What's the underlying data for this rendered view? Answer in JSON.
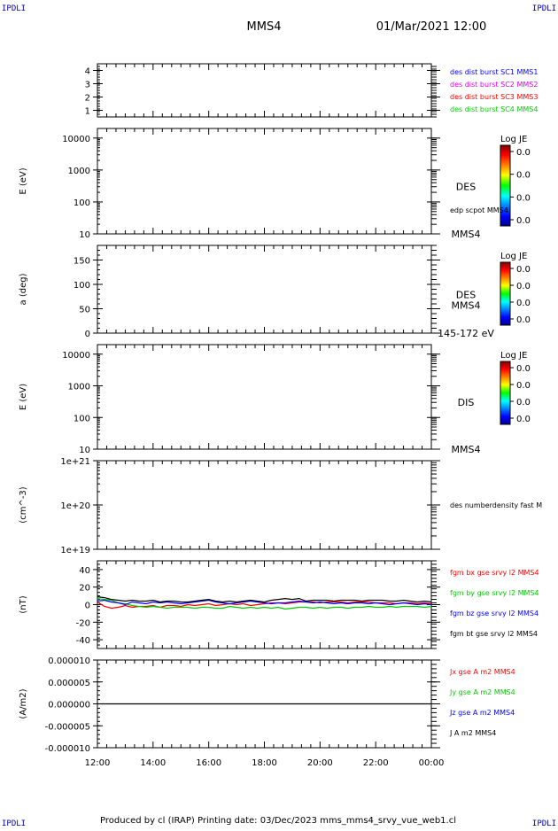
{
  "header": {
    "corner_tl": "IPDLI",
    "corner_tr": "IPDLI",
    "corner_bl": "IPDLI",
    "corner_br": "IPDLI",
    "spacecraft": "MMS4",
    "datetime": "01/Mar/2021 12:00"
  },
  "footer": {
    "text": "Produced by cl (IRAP)   Printing date: 03/Dec/2023   mms_mms4_srvy_vue_web1.cl"
  },
  "colors": {
    "blue": "#0000ff",
    "magenta": "#dd00dd",
    "red": "#ff0000",
    "green": "#00cc00",
    "black": "#000000"
  },
  "colorbar": {
    "title": "Log JE",
    "tick_labels": [
      "0.0",
      "0.0",
      "0.0",
      "0.0"
    ]
  },
  "chart_data": [
    {
      "type": "line",
      "id": "burst",
      "ylabel": "",
      "ylim": [
        0.5,
        4.5
      ],
      "yticks": [
        1,
        2,
        3,
        4
      ],
      "ytick_labels": [
        "1",
        "2",
        "3",
        "4"
      ],
      "side_labels": [
        {
          "text": "des dist burst SC1 MMS1",
          "color": "#0000ff"
        },
        {
          "text": "des dist burst SC2 MMS2",
          "color": "#dd00dd"
        },
        {
          "text": "des dist burst SC3 MMS3",
          "color": "#ff0000"
        },
        {
          "text": "des dist burst SC4 MMS4",
          "color": "#00cc00"
        }
      ]
    },
    {
      "type": "heatmap",
      "id": "des-energy",
      "ylabel": "E (eV)",
      "yscale": "log",
      "ylim": [
        10,
        20000
      ],
      "yticks": [
        10,
        100,
        1000,
        10000
      ],
      "ytick_labels": [
        "10",
        "100",
        "1000",
        "10000"
      ],
      "label_main": "DES",
      "label_line": "edp scpot MMS4",
      "label_sc": "MMS4"
    },
    {
      "type": "heatmap",
      "id": "des-pitch",
      "ylabel": "a (deg)",
      "ylim": [
        0,
        180
      ],
      "yticks": [
        0,
        50,
        100,
        150
      ],
      "ytick_labels": [
        "0",
        "50",
        "100",
        "150"
      ],
      "label_main": "DES",
      "label_sc": "MMS4",
      "label_range": "145-172 eV"
    },
    {
      "type": "heatmap",
      "id": "dis-energy",
      "ylabel": "E (eV)",
      "yscale": "log",
      "ylim": [
        10,
        20000
      ],
      "yticks": [
        10,
        100,
        1000,
        10000
      ],
      "ytick_labels": [
        "10",
        "100",
        "1000",
        "10000"
      ],
      "label_main": "DIS",
      "label_sc": "MMS4"
    },
    {
      "type": "line",
      "id": "density",
      "ylabel": "(cm^-3)",
      "yscale": "log",
      "ylim": [
        1e+19,
        1e+21
      ],
      "yticks": [
        1e+19,
        1e+20,
        1e+21
      ],
      "ytick_labels": [
        "1e+19",
        "1e+20",
        "1e+21"
      ],
      "side_labels": [
        {
          "text": "des numberdensity fast M",
          "color": "#000000"
        }
      ]
    },
    {
      "type": "line",
      "id": "fgm",
      "ylabel": "(nT)",
      "ylim": [
        -50,
        50
      ],
      "yticks": [
        -40,
        -20,
        0,
        20,
        40
      ],
      "ytick_labels": [
        "-40",
        "-20",
        "0",
        "20",
        "40"
      ],
      "side_labels": [
        {
          "text": "fgm bx gse srvy l2 MMS4",
          "color": "#ff0000"
        },
        {
          "text": "fgm by gse srvy l2 MMS4",
          "color": "#00cc00"
        },
        {
          "text": "fgm bz gse srvy l2 MMS4",
          "color": "#0000ff"
        },
        {
          "text": "fgm bt gse srvy l2 MMS4",
          "color": "#000000"
        }
      ],
      "x": [
        0,
        0.25,
        0.5,
        0.75,
        1,
        1.25,
        1.5,
        1.75,
        2,
        2.25,
        2.5,
        2.75,
        3,
        3.25,
        3.5,
        3.75,
        4,
        4.25,
        4.5,
        4.75,
        5,
        5.25,
        5.5,
        5.75,
        6,
        6.25,
        6.5,
        6.75,
        7,
        7.25,
        7.5,
        7.75,
        8,
        8.25,
        8.5,
        8.75,
        9,
        9.25,
        9.5,
        9.75,
        10,
        10.25,
        10.5,
        10.75,
        11,
        11.25,
        11.5,
        11.75,
        12
      ],
      "series": [
        {
          "name": "fgm bx gse srvy l2 MMS4",
          "color": "#ff0000",
          "values": [
            3,
            -2,
            -4,
            -3,
            -1,
            -3,
            -2,
            -2,
            -1,
            -3,
            -1,
            -1,
            -2,
            0,
            -1,
            0,
            1,
            -1,
            0,
            1,
            0,
            1,
            -1,
            0,
            1,
            2,
            2,
            1,
            2,
            3,
            3,
            3,
            2,
            3,
            3,
            3,
            2,
            3,
            3,
            3,
            2,
            2,
            2,
            1,
            2,
            2,
            1,
            2,
            1
          ]
        },
        {
          "name": "fgm by gse srvy l2 MMS4",
          "color": "#00cc00",
          "values": [
            7,
            6,
            5,
            2,
            1,
            -1,
            -2,
            -3,
            -2,
            -3,
            -4,
            -3,
            -3,
            -3,
            -4,
            -3,
            -3,
            -4,
            -4,
            -2,
            -3,
            -4,
            -3,
            -4,
            -3,
            -4,
            -3,
            -5,
            -4,
            -3,
            -3,
            -4,
            -3,
            -4,
            -3,
            -3,
            -4,
            -3,
            -3,
            -2,
            -3,
            -3,
            -2,
            -3,
            -2,
            -2,
            -2,
            -3,
            -2
          ]
        },
        {
          "name": "fgm bz gse srvy l2 MMS4",
          "color": "#0000ff",
          "values": [
            4,
            5,
            3,
            2,
            0,
            3,
            2,
            1,
            3,
            2,
            3,
            2,
            1,
            2,
            3,
            4,
            5,
            3,
            2,
            1,
            2,
            3,
            4,
            3,
            2,
            1,
            2,
            2,
            3,
            4,
            3,
            2,
            3,
            2,
            1,
            2,
            1,
            2,
            2,
            1,
            2,
            1,
            0,
            1,
            2,
            1,
            0,
            1,
            0
          ]
        },
        {
          "name": "fgm bt gse srvy l2 MMS4",
          "color": "#000000",
          "values": [
            9,
            8,
            6,
            5,
            4,
            5,
            4,
            4,
            5,
            3,
            4,
            4,
            3,
            3,
            4,
            5,
            6,
            4,
            3,
            4,
            3,
            4,
            5,
            4,
            3,
            5,
            6,
            7,
            6,
            7,
            4,
            5,
            5,
            5,
            4,
            5,
            5,
            5,
            4,
            5,
            5,
            5,
            4,
            4,
            5,
            4,
            3,
            4,
            3
          ]
        }
      ]
    },
    {
      "type": "line",
      "id": "current",
      "ylabel": "(A/m2)",
      "ylim": [
        -1e-05,
        1e-05
      ],
      "yticks": [
        -1e-05,
        -5e-06,
        0,
        5e-06,
        1e-05
      ],
      "ytick_labels": [
        "-0.000010",
        "-0.000005",
        "0.000000",
        "0.000005",
        "0.000010"
      ],
      "side_labels": [
        {
          "text": "Jx gse A m2 MMS4",
          "color": "#ff0000"
        },
        {
          "text": "Jy gse A m2 MMS4",
          "color": "#00cc00"
        },
        {
          "text": "Jz gse A m2 MMS4",
          "color": "#0000ff"
        },
        {
          "text": "J A m2 MMS4",
          "color": "#000000"
        }
      ],
      "x": [
        0,
        12
      ],
      "series": [
        {
          "name": "J A m2 MMS4",
          "color": "#000000",
          "values": [
            0,
            0
          ]
        }
      ]
    }
  ],
  "xaxis": {
    "range_hours": [
      0,
      12
    ],
    "tick_hours": [
      0,
      2,
      4,
      6,
      8,
      10,
      12
    ],
    "tick_labels": [
      "12:00",
      "14:00",
      "16:00",
      "18:00",
      "20:00",
      "22:00",
      "00:00"
    ]
  }
}
